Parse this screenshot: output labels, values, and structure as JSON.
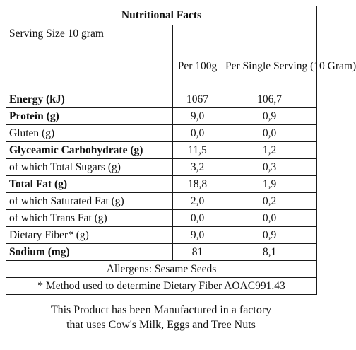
{
  "title": "Nutritional Facts",
  "serving_size": "Serving Size 10 gram",
  "columns": {
    "per_100g": "Per 100g",
    "per_serving": "Per Single\nServing\n(10 Gram)"
  },
  "rows": [
    {
      "name": "Energy (kJ)",
      "per_100g": "1067",
      "per_serving": "106,7"
    },
    {
      "name": "Protein (g)",
      "per_100g": "9,0",
      "per_serving": "0,9"
    },
    {
      "name": "Gluten (g)",
      "per_100g": "0,0",
      "per_serving": "0,0"
    },
    {
      "name": "Glyceamic Carbohydrate (g)",
      "per_100g": "11,5",
      "per_serving": "1,2"
    },
    {
      "name": "of which Total Sugars (g)",
      "per_100g": "3,2",
      "per_serving": "0,3"
    },
    {
      "name": "Total Fat (g)",
      "per_100g": "18,8",
      "per_serving": "1,9"
    },
    {
      "name": "of which Saturated Fat (g)",
      "per_100g": "2,0",
      "per_serving": "0,2"
    },
    {
      "name": "of which Trans Fat (g)",
      "per_100g": "0,0",
      "per_serving": "0,0"
    },
    {
      "name": "Dietary Fiber* (g)",
      "per_100g": "9,0",
      "per_serving": "0,9"
    },
    {
      "name": "Sodium (mg)",
      "per_100g": "81",
      "per_serving": "8,1"
    }
  ],
  "allergens": "Allergens: Sesame Seeds",
  "method_note": "* Method used to determine Dietary Fiber AOAC991.43",
  "footer": {
    "line1": "This Product has been Manufactured in a factory",
    "line2": "that uses Cow's Milk, Eggs and Tree Nuts"
  }
}
